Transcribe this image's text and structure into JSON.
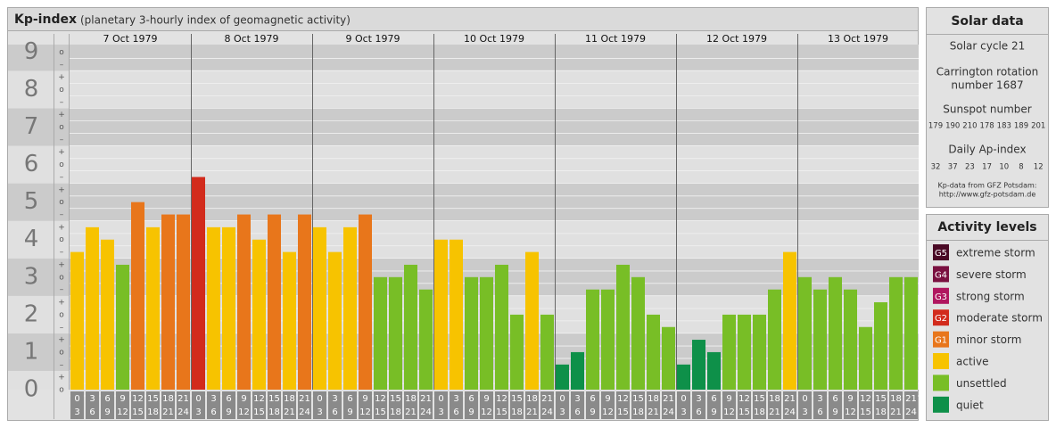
{
  "header": {
    "title": "Kp-index",
    "subtitle": "(planetary 3-hourly index of geomagnetic activity)"
  },
  "chart_data": {
    "type": "bar",
    "ylim": [
      0,
      9.2
    ],
    "yticks": [
      0,
      1,
      2,
      3,
      4,
      5,
      6,
      7,
      8,
      9
    ],
    "minor_ticks": [
      {
        "value": 0,
        "label": "o"
      },
      {
        "value": 0.33,
        "label": "+"
      },
      {
        "value": 0.67,
        "label": "–"
      },
      {
        "value": 1,
        "label": "o"
      },
      {
        "value": 1.33,
        "label": "+"
      },
      {
        "value": 1.67,
        "label": "–"
      },
      {
        "value": 2,
        "label": "o"
      },
      {
        "value": 2.33,
        "label": "+"
      },
      {
        "value": 2.67,
        "label": "–"
      },
      {
        "value": 3,
        "label": "o"
      },
      {
        "value": 3.33,
        "label": "+"
      },
      {
        "value": 3.67,
        "label": "–"
      },
      {
        "value": 4,
        "label": "o"
      },
      {
        "value": 4.33,
        "label": "+"
      },
      {
        "value": 4.67,
        "label": "–"
      },
      {
        "value": 5,
        "label": "o"
      },
      {
        "value": 5.33,
        "label": "+"
      },
      {
        "value": 5.67,
        "label": "–"
      },
      {
        "value": 6,
        "label": "o"
      },
      {
        "value": 6.33,
        "label": "+"
      },
      {
        "value": 6.67,
        "label": "–"
      },
      {
        "value": 7,
        "label": "o"
      },
      {
        "value": 7.33,
        "label": "+"
      },
      {
        "value": 7.67,
        "label": "–"
      },
      {
        "value": 8,
        "label": "o"
      },
      {
        "value": 8.33,
        "label": "+"
      },
      {
        "value": 8.67,
        "label": "–"
      },
      {
        "value": 9,
        "label": "o"
      }
    ],
    "hour_ranges": [
      [
        "0",
        "3"
      ],
      [
        "3",
        "6"
      ],
      [
        "6",
        "9"
      ],
      [
        "9",
        "12"
      ],
      [
        "12",
        "15"
      ],
      [
        "15",
        "18"
      ],
      [
        "18",
        "21"
      ],
      [
        "21",
        "24"
      ]
    ],
    "days": [
      {
        "date": "7 Oct 1979",
        "values": [
          3.67,
          4.33,
          4,
          3.33,
          5,
          4.33,
          4.67,
          4.67
        ],
        "colors": [
          "#f7c300",
          "#f7c300",
          "#f7c300",
          "#78be26",
          "#e8761b",
          "#f7c300",
          "#e8761b",
          "#e8761b"
        ]
      },
      {
        "date": "8 Oct 1979",
        "values": [
          5.67,
          4.33,
          4.33,
          4.67,
          4,
          4.67,
          3.67,
          4.67
        ],
        "colors": [
          "#d22b1c",
          "#f7c300",
          "#f7c300",
          "#e8761b",
          "#f7c300",
          "#e8761b",
          "#f7c300",
          "#e8761b"
        ]
      },
      {
        "date": "9 Oct 1979",
        "values": [
          4.33,
          3.67,
          4.33,
          4.67,
          3,
          3,
          3.33,
          2.67
        ],
        "colors": [
          "#f7c300",
          "#f7c300",
          "#f7c300",
          "#e8761b",
          "#78be26",
          "#78be26",
          "#78be26",
          "#78be26"
        ]
      },
      {
        "date": "10 Oct 1979",
        "values": [
          4,
          4,
          3,
          3,
          3.33,
          2,
          3.67,
          2
        ],
        "colors": [
          "#f7c300",
          "#f7c300",
          "#78be26",
          "#78be26",
          "#78be26",
          "#78be26",
          "#f7c300",
          "#78be26"
        ]
      },
      {
        "date": "11 Oct 1979",
        "values": [
          0.67,
          1,
          2.67,
          2.67,
          3.33,
          3,
          2,
          1.67
        ],
        "colors": [
          "#0e9049",
          "#0e9049",
          "#78be26",
          "#78be26",
          "#78be26",
          "#78be26",
          "#78be26",
          "#78be26"
        ]
      },
      {
        "date": "12 Oct 1979",
        "values": [
          0.67,
          1.33,
          1,
          2,
          2,
          2,
          2.67,
          3.67
        ],
        "colors": [
          "#0e9049",
          "#0e9049",
          "#0e9049",
          "#78be26",
          "#78be26",
          "#78be26",
          "#78be26",
          "#f7c300"
        ]
      },
      {
        "date": "13 Oct 1979",
        "values": [
          3,
          2.67,
          3,
          2.67,
          1.67,
          2.33,
          3,
          3
        ],
        "colors": [
          "#78be26",
          "#78be26",
          "#78be26",
          "#78be26",
          "#78be26",
          "#78be26",
          "#78be26",
          "#78be26"
        ]
      }
    ]
  },
  "solar_data": {
    "title": "Solar data",
    "solar_cycle": "Solar cycle 21",
    "carrington": [
      "Carrington rotation",
      "number 1687"
    ],
    "sunspot_label": "Sunspot number",
    "sunspot_numbers": [
      179,
      190,
      210,
      178,
      183,
      189,
      201
    ],
    "ap_label": "Daily Ap-index",
    "ap_index": [
      32,
      37,
      23,
      17,
      10,
      8,
      12
    ],
    "source": [
      "Kp-data from GFZ Potsdam:",
      "http://www.gfz-potsdam.de"
    ]
  },
  "activity_levels": {
    "title": "Activity levels",
    "items": [
      {
        "code": "G5",
        "label": "extreme storm",
        "color": "#4a0a25"
      },
      {
        "code": "G4",
        "label": "severe storm",
        "color": "#7a1040"
      },
      {
        "code": "G3",
        "label": "strong storm",
        "color": "#b0165f"
      },
      {
        "code": "G2",
        "label": "moderate storm",
        "color": "#d22b1c"
      },
      {
        "code": "G1",
        "label": "minor storm",
        "color": "#e8761b"
      },
      {
        "label": "active",
        "color": "#f7c300"
      },
      {
        "label": "unsettled",
        "color": "#78be26"
      },
      {
        "label": "quiet",
        "color": "#0e9049"
      }
    ]
  }
}
